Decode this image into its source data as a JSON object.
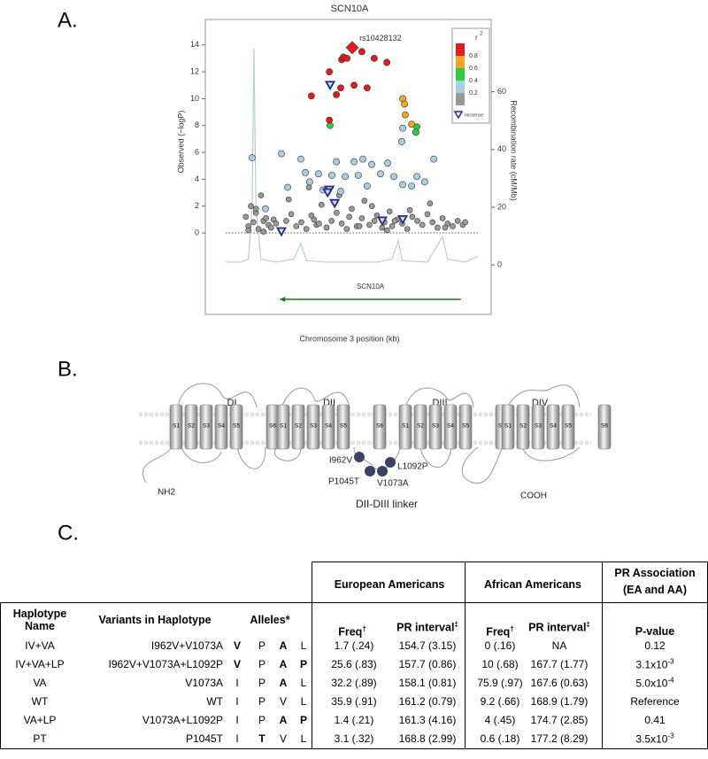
{
  "panels": {
    "a": "A.",
    "b": "B.",
    "c": "C."
  },
  "chart_data": {
    "type": "scatter",
    "title": "SCN10A",
    "x_label": "Chromosome 3 position (kb)",
    "y_label": "Observed (−logP)",
    "y2_label": "Recombination rate (cM/Mb)",
    "xlim": [
      0,
      100
    ],
    "ylim": [
      -5.8,
      15.5
    ],
    "yticks": [
      0,
      2,
      4,
      6,
      8,
      10,
      12,
      14
    ],
    "y2lim": [
      -15.9,
      83.2
    ],
    "y2ticks": [
      0,
      20,
      40,
      60
    ],
    "baseline": 0,
    "gene": {
      "name": "SCN10A",
      "start": 21.5,
      "end": 93.3,
      "strand": "-",
      "color": "#1a7a1a"
    },
    "legend": {
      "title": "r",
      "title_sup": "2",
      "bins": [
        0,
        0.2,
        0.4,
        0.6,
        0.8,
        1
      ],
      "colors": [
        "#9a9a9a",
        "#a6cfe3",
        "#2ecc40",
        "#f5a623",
        "#e41a1c"
      ],
      "ticks": [
        0.2,
        0.4,
        0.6,
        0.8
      ]
    },
    "series": [
      {
        "type": "line",
        "axis": "y2",
        "color": "#b5cfcf",
        "x": [
          0,
          6,
          9,
          10.5,
          11.2,
          12,
          14,
          20,
          27,
          29.8,
          32,
          40,
          50,
          60,
          66,
          68.4,
          70,
          80,
          86,
          88,
          95,
          100
        ],
        "values": [
          1,
          1,
          2,
          20,
          75,
          20,
          2,
          1,
          2,
          7.6,
          1.5,
          1,
          1,
          1,
          2,
          8.5,
          1.5,
          1,
          9.8,
          2,
          1,
          3
        ]
      },
      {
        "marker": "circle",
        "color": "#9a9a9a",
        "x": [
          8,
          9,
          10,
          11,
          12,
          13,
          14,
          15,
          16,
          17,
          18,
          19,
          20,
          22,
          24,
          26,
          28,
          30,
          32,
          33,
          35,
          36,
          38,
          40,
          42,
          44,
          46,
          48,
          50,
          52,
          54,
          55,
          57,
          59,
          60,
          62,
          63,
          65,
          66,
          68,
          70,
          72,
          74,
          76,
          78,
          80,
          82,
          84,
          86,
          88,
          90,
          92,
          94,
          95,
          9,
          12,
          15,
          25,
          34,
          37,
          45,
          49,
          53,
          58,
          64,
          67,
          73,
          81,
          87
        ],
        "values": [
          1.2,
          0.5,
          2.0,
          0.8,
          1.5,
          0.3,
          2.8,
          0.9,
          1.1,
          0.6,
          0.4,
          1.0,
          0.7,
          0.2,
          0.9,
          1.4,
          0.5,
          0.8,
          0.3,
          3.4,
          1.0,
          0.6,
          2.1,
          0.4,
          0.9,
          1.5,
          0.7,
          0.3,
          1.8,
          0.5,
          1.1,
          2.4,
          0.6,
          0.9,
          1.3,
          0.4,
          0.8,
          1.6,
          0.5,
          1.0,
          0.7,
          0.3,
          1.2,
          0.9,
          0.6,
          1.4,
          0.8,
          0.4,
          1.1,
          0.7,
          0.5,
          0.9,
          0.6,
          0.8,
          0.2,
          1.8,
          0.1,
          2.5,
          1.3,
          0.7,
          2.8,
          1.2,
          0.5,
          2.0,
          0.2,
          0.9,
          1.7,
          2.2,
          0.4
        ]
      },
      {
        "marker": "circle",
        "color": "#a6cfe3",
        "x": [
          70.2,
          69.8,
          22.1,
          10.5,
          29.8,
          43.9,
          50.9,
          54.4,
          57.9,
          31.6,
          36.8,
          42.1,
          47.4,
          52.6,
          61.4,
          66.7,
          70.2,
          73.7,
          78.9,
          82.5,
          24.6,
          38.6,
          45.6,
          56.1,
          75.8,
          15.8,
          33.3,
          64.2
        ],
        "values": [
          7.8,
          6.8,
          5.9,
          5.6,
          5.5,
          5.3,
          5.3,
          5.5,
          5.1,
          4.5,
          4.4,
          4.3,
          4.2,
          4.3,
          4.4,
          4.2,
          3.6,
          3.5,
          3.8,
          5.5,
          3.4,
          3.2,
          3.1,
          3.5,
          4.2,
          1.8,
          3.8,
          5.2
        ]
      },
      {
        "marker": "circle",
        "color": "#2ecc40",
        "x": [
          41.4,
          75.8,
          75.4
        ],
        "values": [
          8.0,
          7.9,
          7.5
        ]
      },
      {
        "marker": "circle",
        "color": "#f5a623",
        "x": [
          70.2,
          70.9,
          71.2,
          73.7
        ],
        "values": [
          10.0,
          9.6,
          8.8,
          8.1
        ]
      },
      {
        "marker": "circle",
        "color": "#e41a1c",
        "x": [
          34.0,
          41.1,
          43.9,
          45.6,
          46.0,
          46.7,
          48.1,
          50.9,
          54.0,
          56.1,
          58.9,
          63.9,
          41.1
        ],
        "values": [
          10.2,
          12.0,
          10.3,
          10.8,
          12.9,
          13.1,
          13.0,
          11.0,
          13.5,
          10.8,
          13.0,
          12.7,
          8.4
        ]
      },
      {
        "marker": "diamond",
        "color": "#e41a1c",
        "label": "rs10428132",
        "x": [
          50.2
        ],
        "values": [
          13.8
        ]
      },
      {
        "marker": "triangle",
        "color": "#1f2a8a",
        "name": "missense",
        "x": [
          41.4,
          41.1,
          43.2,
          22.1,
          62.1,
          70.2,
          40.4
        ],
        "values": [
          11.0,
          3.2,
          2.2,
          0.1,
          0.9,
          1.0,
          3.0
        ]
      }
    ]
  },
  "diagram": {
    "domains": [
      "DI",
      "DII",
      "DIII",
      "DIV"
    ],
    "segments": [
      "S1",
      "S2",
      "S3",
      "S4",
      "S5",
      "S6"
    ],
    "termini": [
      "NH2",
      "COOH"
    ],
    "mutations": [
      "I962V",
      "L1092P",
      "P1045T",
      "V1073A"
    ],
    "linker": "DII-DIII linker"
  },
  "table": {
    "group_headers": [
      [
        "European Americans"
      ],
      [
        "African Americans"
      ],
      [
        "PR Association",
        "(EA and AA)"
      ]
    ],
    "columns": [
      {
        "text": "Haplotype Name"
      },
      {
        "text": "Variants in Haplotype"
      },
      {
        "text": "Alleles*"
      },
      {
        "text": "Freq",
        "sup": "†"
      },
      {
        "text": "PR interval",
        "sup": "‡"
      },
      {
        "text": "Freq",
        "sup": "†"
      },
      {
        "text": "PR interval",
        "sup": "‡"
      },
      {
        "text": "P-value"
      }
    ],
    "rows": [
      [
        "IV+VA",
        "I962V+V1073A",
        [
          {
            "t": "V",
            "b": true
          },
          {
            "t": "P",
            "b": false
          },
          {
            "t": "A",
            "b": true
          },
          {
            "t": "L",
            "b": false
          }
        ],
        "1.7 (.24)",
        "154.7 (3.15)",
        "0 (.16)",
        "NA",
        {
          "text": "0.12"
        }
      ],
      [
        "IV+VA+LP",
        "I962V+V1073A+L1092P",
        [
          {
            "t": "V",
            "b": true
          },
          {
            "t": "P",
            "b": false
          },
          {
            "t": "A",
            "b": true
          },
          {
            "t": "P",
            "b": true
          }
        ],
        "25.6 (.83)",
        "157.7 (0.86)",
        "10 (.68)",
        "167.7 (1.77)",
        {
          "text": "3.1x10",
          "sup": "-3"
        }
      ],
      [
        "VA",
        "V1073A",
        [
          {
            "t": "I",
            "b": false
          },
          {
            "t": "P",
            "b": false
          },
          {
            "t": "A",
            "b": true
          },
          {
            "t": "L",
            "b": false
          }
        ],
        "32.2 (.89)",
        "158.1 (0.81)",
        "75.9 (.97)",
        "167.6 (0.63)",
        {
          "text": "5.0x10",
          "sup": "-4"
        }
      ],
      [
        "WT",
        "WT",
        [
          {
            "t": "I",
            "b": false
          },
          {
            "t": "P",
            "b": false
          },
          {
            "t": "V",
            "b": false
          },
          {
            "t": "L",
            "b": false
          }
        ],
        "35.9 (.91)",
        "161.2 (0.79)",
        "9.2 (.66)",
        "168.9 (1.79)",
        {
          "text": "Reference"
        }
      ],
      [
        "VA+LP",
        "V1073A+L1092P",
        [
          {
            "t": "I",
            "b": false
          },
          {
            "t": "P",
            "b": false
          },
          {
            "t": "A",
            "b": true
          },
          {
            "t": "P",
            "b": true
          }
        ],
        "1.4 (.21)",
        "161.3 (4.16)",
        "4 (.45)",
        "174.7 (2.85)",
        {
          "text": "0.41"
        }
      ],
      [
        "PT",
        "P1045T",
        [
          {
            "t": "I",
            "b": false
          },
          {
            "t": "T",
            "b": true
          },
          {
            "t": "V",
            "b": false
          },
          {
            "t": "L",
            "b": false
          }
        ],
        "3.1 (.32)",
        "168.8 (2.99)",
        "0.6 (.18)",
        "177.2 (8.29)",
        {
          "text": "3.5x10",
          "sup": "-3"
        }
      ]
    ]
  }
}
